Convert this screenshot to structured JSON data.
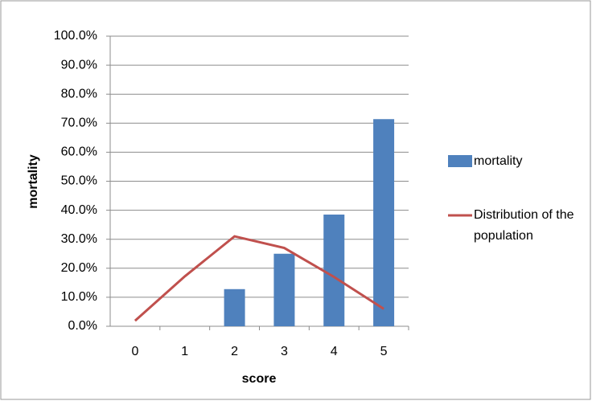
{
  "chart_data": {
    "type": "bar-line",
    "x_label": "score",
    "y_label": "mortality",
    "categories": [
      "0",
      "1",
      "2",
      "3",
      "4",
      "5"
    ],
    "series": [
      {
        "name": "mortality",
        "type": "bar",
        "color": "#4f81bd",
        "values": [
          0,
          0,
          12.8,
          25,
          38.5,
          71.4
        ]
      },
      {
        "name": "Distribution of the population",
        "type": "line",
        "color": "#c0504d",
        "values": [
          1.9,
          17.2,
          31,
          27,
          17,
          6
        ]
      }
    ],
    "ylim": [
      0,
      100
    ],
    "yticks": [
      {
        "value": 0,
        "label": "0.0%"
      },
      {
        "value": 10,
        "label": "10.0%"
      },
      {
        "value": 20,
        "label": "20.0%"
      },
      {
        "value": 30,
        "label": "30.0%"
      },
      {
        "value": 40,
        "label": "40.0%"
      },
      {
        "value": 50,
        "label": "50.0%"
      },
      {
        "value": 60,
        "label": "60.0%"
      },
      {
        "value": 70,
        "label": "70.0%"
      },
      {
        "value": 80,
        "label": "80.0%"
      },
      {
        "value": 90,
        "label": "90.0%"
      },
      {
        "value": 100,
        "label": "100.0%"
      }
    ],
    "grid": true,
    "legend": "right"
  }
}
